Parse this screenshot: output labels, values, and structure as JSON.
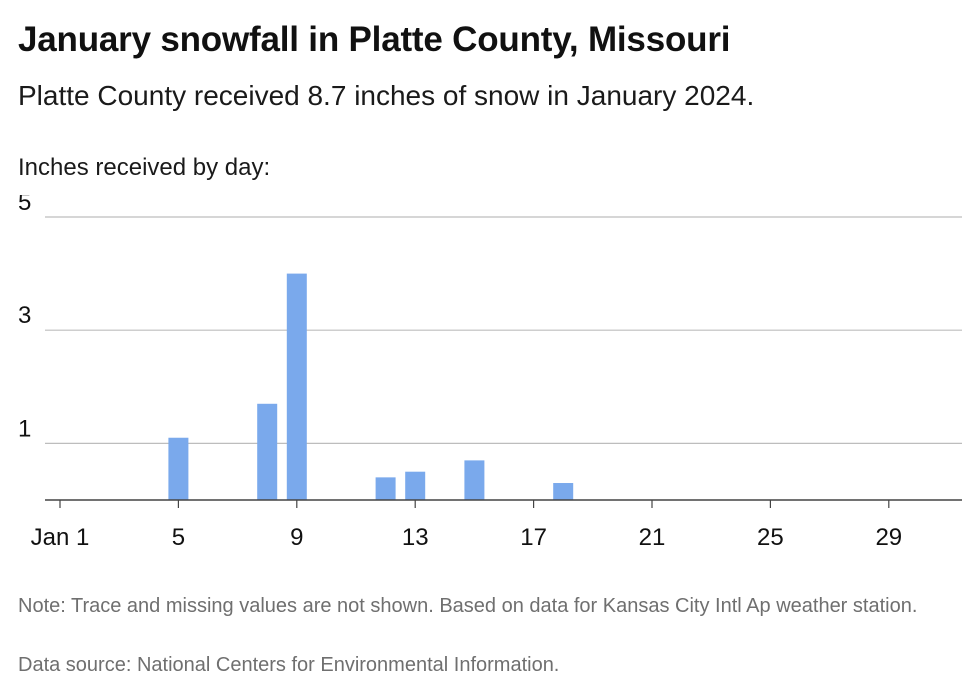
{
  "title": "January snowfall in Platte County, Missouri",
  "subtitle": "Platte County received 8.7 inches of snow in January 2024.",
  "ylabel": "Inches received by day:",
  "note": "Note: Trace and missing values are not shown. Based on data for Kansas City Intl Ap weather station.",
  "source": "Data source: National Centers for Environmental Information.",
  "colors": {
    "bar": "#7aa9ec",
    "grid": "#bdbdbd",
    "axis": "#444444"
  },
  "chart_data": {
    "type": "bar",
    "xlim": [
      1,
      31
    ],
    "ylim": [
      0,
      5
    ],
    "yticks": [
      1,
      3,
      5
    ],
    "xticks": [
      {
        "value": 1,
        "label": "Jan 1"
      },
      {
        "value": 5,
        "label": "5"
      },
      {
        "value": 9,
        "label": "9"
      },
      {
        "value": 13,
        "label": "13"
      },
      {
        "value": 17,
        "label": "17"
      },
      {
        "value": 21,
        "label": "21"
      },
      {
        "value": 25,
        "label": "25"
      },
      {
        "value": 29,
        "label": "29"
      }
    ],
    "points": [
      {
        "day": 5,
        "value": 1.1
      },
      {
        "day": 8,
        "value": 1.7
      },
      {
        "day": 9,
        "value": 4.0
      },
      {
        "day": 12,
        "value": 0.4
      },
      {
        "day": 13,
        "value": 0.5
      },
      {
        "day": 15,
        "value": 0.7
      },
      {
        "day": 18,
        "value": 0.3
      }
    ],
    "grid": true
  }
}
